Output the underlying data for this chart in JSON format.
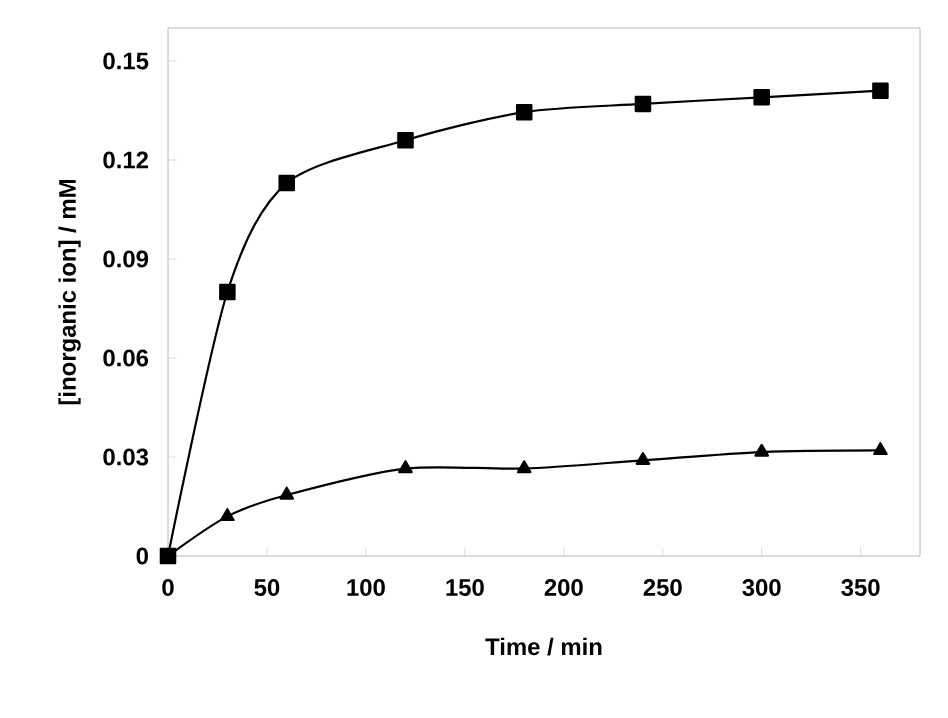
{
  "chart_data": {
    "type": "line",
    "xlabel": "Time / min",
    "ylabel": "[inorganic ion] / mM",
    "xlim": [
      0,
      380
    ],
    "xticks": [
      0,
      50,
      100,
      150,
      200,
      250,
      300,
      350
    ],
    "ylim": [
      0,
      0.16
    ],
    "yticks": [
      0,
      0.03,
      0.06,
      0.09,
      0.12,
      0.15
    ],
    "grid": false,
    "series": [
      {
        "color": "#000000",
        "marker": "square",
        "x": [
          0,
          30,
          60,
          120,
          180,
          240,
          300,
          360
        ],
        "values": [
          0,
          0.08,
          0.113,
          0.126,
          0.1345,
          0.137,
          0.139,
          0.141
        ]
      },
      {
        "color": "#000000",
        "marker": "triangle",
        "x": [
          0,
          30,
          60,
          120,
          180,
          240,
          300,
          360
        ],
        "values": [
          0,
          0.012,
          0.0185,
          0.0265,
          0.0265,
          0.029,
          0.0315,
          0.032
        ]
      }
    ]
  }
}
